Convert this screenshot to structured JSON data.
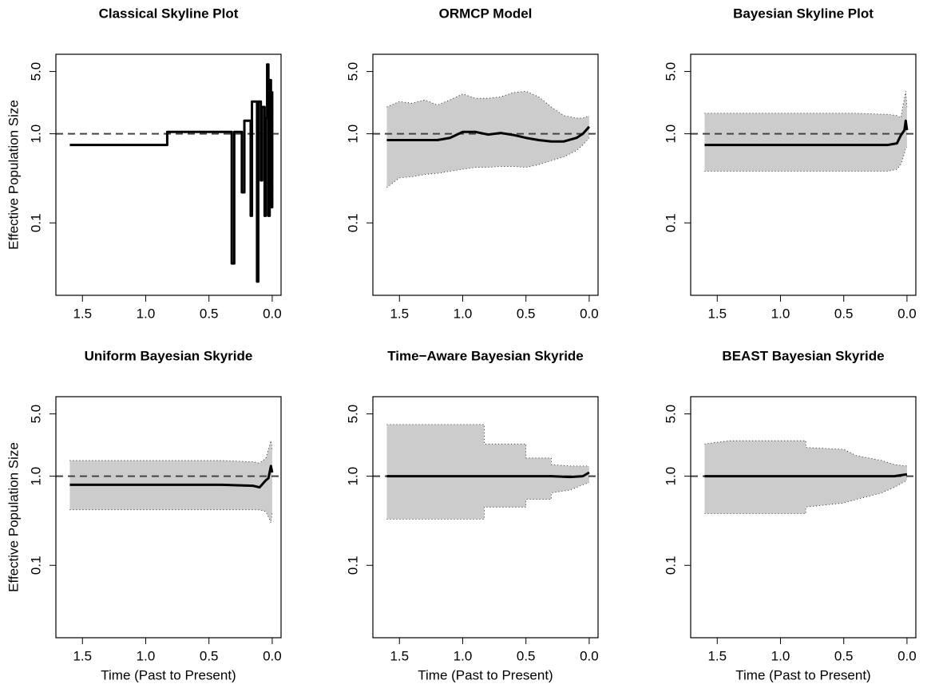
{
  "chart_data": [
    {
      "type": "line",
      "title": "Classical Skyline Plot",
      "ylabel": "Effective Population Size",
      "ylog": true,
      "color": "#000000",
      "band_color": "#cccccc",
      "xlim": [
        1.71,
        -0.07
      ],
      "ylim": [
        0.0154,
        7.8
      ],
      "xticks": [
        1.5,
        {
          "value": 1,
          "label": "1.0"
        },
        0.5,
        {
          "value": 0,
          "label": "0.0"
        }
      ],
      "yticks": [
        0.1,
        {
          "value": 1,
          "label": "1.0"
        },
        {
          "value": 5,
          "label": "5.0"
        }
      ],
      "hline": 1,
      "x": [
        1.6,
        0.83,
        0.83,
        0.32,
        0.32,
        0.3,
        0.3,
        0.24,
        0.24,
        0.22,
        0.22,
        0.17,
        0.17,
        0.16,
        0.16,
        0.12,
        0.12,
        0.11,
        0.11,
        0.09,
        0.09,
        0.08,
        0.08,
        0.06,
        0.06,
        0.05,
        0.05,
        0.04,
        0.04,
        0.03,
        0.03,
        0.02,
        0.02,
        0.01,
        0.01,
        0.0,
        0.0
      ],
      "values": [
        0.75,
        0.75,
        1.05,
        1.05,
        0.035,
        0.035,
        1.05,
        1.05,
        0.22,
        0.22,
        1.4,
        1.4,
        0.12,
        0.12,
        2.3,
        2.3,
        0.022,
        0.022,
        2.3,
        2.3,
        0.3,
        0.3,
        2.0,
        2.0,
        0.12,
        0.12,
        1.5,
        1.5,
        6.0,
        6.0,
        0.12,
        0.12,
        4.0,
        4.0,
        0.15,
        0.15,
        3.0
      ]
    },
    {
      "type": "line",
      "title": "ORMCP Model",
      "ylog": true,
      "color": "#000000",
      "band_color": "#cccccc",
      "xlim": [
        1.71,
        -0.07
      ],
      "ylim": [
        0.0154,
        7.8
      ],
      "xticks": [
        1.5,
        {
          "value": 1,
          "label": "1.0"
        },
        0.5,
        {
          "value": 0,
          "label": "0.0"
        }
      ],
      "yticks": [
        0.1,
        {
          "value": 1,
          "label": "1.0"
        },
        {
          "value": 5,
          "label": "5.0"
        }
      ],
      "hline": 1,
      "x": [
        1.6,
        1.5,
        1.4,
        1.3,
        1.2,
        1.1,
        1.0,
        0.9,
        0.8,
        0.7,
        0.6,
        0.5,
        0.4,
        0.3,
        0.2,
        0.1,
        0.05,
        0.0
      ],
      "values": [
        0.85,
        0.85,
        0.85,
        0.85,
        0.85,
        0.9,
        1.05,
        1.05,
        0.98,
        1.02,
        0.97,
        0.9,
        0.85,
        0.82,
        0.82,
        0.9,
        1.0,
        1.2
      ],
      "lower": [
        0.25,
        0.32,
        0.33,
        0.35,
        0.36,
        0.38,
        0.4,
        0.42,
        0.42,
        0.43,
        0.43,
        0.42,
        0.45,
        0.5,
        0.55,
        0.65,
        0.75,
        0.9
      ],
      "upper": [
        2.0,
        2.3,
        2.2,
        2.4,
        2.1,
        2.4,
        2.8,
        2.5,
        2.5,
        2.6,
        2.9,
        3.0,
        2.6,
        2.0,
        1.6,
        1.5,
        1.5,
        1.6
      ]
    },
    {
      "type": "line",
      "title": "Bayesian Skyline Plot",
      "ylog": true,
      "color": "#000000",
      "band_color": "#cccccc",
      "xlim": [
        1.71,
        -0.07
      ],
      "ylim": [
        0.0154,
        7.8
      ],
      "xticks": [
        1.5,
        {
          "value": 1,
          "label": "1.0"
        },
        0.5,
        {
          "value": 0,
          "label": "0.0"
        }
      ],
      "yticks": [
        0.1,
        {
          "value": 1,
          "label": "1.0"
        },
        {
          "value": 5,
          "label": "5.0"
        }
      ],
      "hline": 1,
      "x": [
        1.6,
        1.2,
        0.8,
        0.4,
        0.15,
        0.08,
        0.05,
        0.02,
        0.01,
        0.0
      ],
      "values": [
        0.75,
        0.75,
        0.75,
        0.75,
        0.75,
        0.78,
        0.95,
        1.1,
        1.4,
        1.1
      ],
      "lower": [
        0.38,
        0.38,
        0.38,
        0.38,
        0.38,
        0.4,
        0.45,
        0.6,
        0.7,
        0.7
      ],
      "upper": [
        1.7,
        1.7,
        1.7,
        1.7,
        1.65,
        1.6,
        1.5,
        2.5,
        3.0,
        2.0
      ]
    },
    {
      "type": "line",
      "title": "Uniform Bayesian Skyride",
      "xlabel": "Time (Past to Present)",
      "ylabel": "Effective Population Size",
      "ylog": true,
      "color": "#000000",
      "band_color": "#cccccc",
      "xlim": [
        1.71,
        -0.07
      ],
      "ylim": [
        0.0154,
        7.8
      ],
      "xticks": [
        1.5,
        {
          "value": 1,
          "label": "1.0"
        },
        0.5,
        {
          "value": 0,
          "label": "0.0"
        }
      ],
      "yticks": [
        0.1,
        {
          "value": 1,
          "label": "1.0"
        },
        {
          "value": 5,
          "label": "5.0"
        }
      ],
      "hline": 1,
      "x": [
        1.6,
        1.2,
        0.8,
        0.4,
        0.15,
        0.1,
        0.05,
        0.03,
        0.01,
        0.0
      ],
      "values": [
        0.8,
        0.8,
        0.8,
        0.8,
        0.78,
        0.75,
        0.9,
        0.95,
        1.3,
        1.1
      ],
      "lower": [
        0.42,
        0.42,
        0.42,
        0.42,
        0.42,
        0.42,
        0.4,
        0.35,
        0.3,
        0.4
      ],
      "upper": [
        1.5,
        1.5,
        1.5,
        1.5,
        1.45,
        1.4,
        1.6,
        2.0,
        2.5,
        2.0
      ]
    },
    {
      "type": "line",
      "title": "Time−Aware Bayesian Skyride",
      "xlabel": "Time (Past to Present)",
      "ylog": true,
      "color": "#000000",
      "band_color": "#cccccc",
      "xlim": [
        1.71,
        -0.07
      ],
      "ylim": [
        0.0154,
        7.8
      ],
      "xticks": [
        1.5,
        {
          "value": 1,
          "label": "1.0"
        },
        0.5,
        {
          "value": 0,
          "label": "0.0"
        }
      ],
      "yticks": [
        0.1,
        {
          "value": 1,
          "label": "1.0"
        },
        {
          "value": 5,
          "label": "5.0"
        }
      ],
      "hline": 1,
      "x": [
        1.6,
        0.83,
        0.83,
        0.5,
        0.5,
        0.3,
        0.3,
        0.15,
        0.05,
        0.0
      ],
      "values": [
        1.0,
        1.0,
        1.0,
        1.0,
        1.0,
        1.0,
        1.0,
        0.98,
        1.0,
        1.1
      ],
      "lower": [
        0.33,
        0.33,
        0.45,
        0.45,
        0.55,
        0.55,
        0.65,
        0.7,
        0.8,
        0.85
      ],
      "upper": [
        3.8,
        3.8,
        2.3,
        2.3,
        1.6,
        1.6,
        1.35,
        1.3,
        1.3,
        1.3
      ]
    },
    {
      "type": "line",
      "title": "BEAST Bayesian Skyride",
      "xlabel": "Time (Past to Present)",
      "ylog": true,
      "color": "#000000",
      "band_color": "#cccccc",
      "xlim": [
        1.71,
        -0.07
      ],
      "ylim": [
        0.0154,
        7.8
      ],
      "xticks": [
        1.5,
        {
          "value": 1,
          "label": "1.0"
        },
        0.5,
        {
          "value": 0,
          "label": "0.0"
        }
      ],
      "yticks": [
        0.1,
        {
          "value": 1,
          "label": "1.0"
        },
        {
          "value": 5,
          "label": "5.0"
        }
      ],
      "hline": 1,
      "x": [
        1.6,
        1.4,
        0.8,
        0.8,
        0.5,
        0.4,
        0.2,
        0.1,
        0.0
      ],
      "values": [
        1.0,
        1.0,
        1.0,
        1.0,
        1.0,
        1.0,
        1.0,
        1.0,
        1.05
      ],
      "lower": [
        0.38,
        0.38,
        0.38,
        0.45,
        0.5,
        0.55,
        0.65,
        0.75,
        0.9
      ],
      "upper": [
        2.3,
        2.5,
        2.5,
        2.1,
        2.0,
        1.7,
        1.5,
        1.35,
        1.3
      ]
    }
  ]
}
